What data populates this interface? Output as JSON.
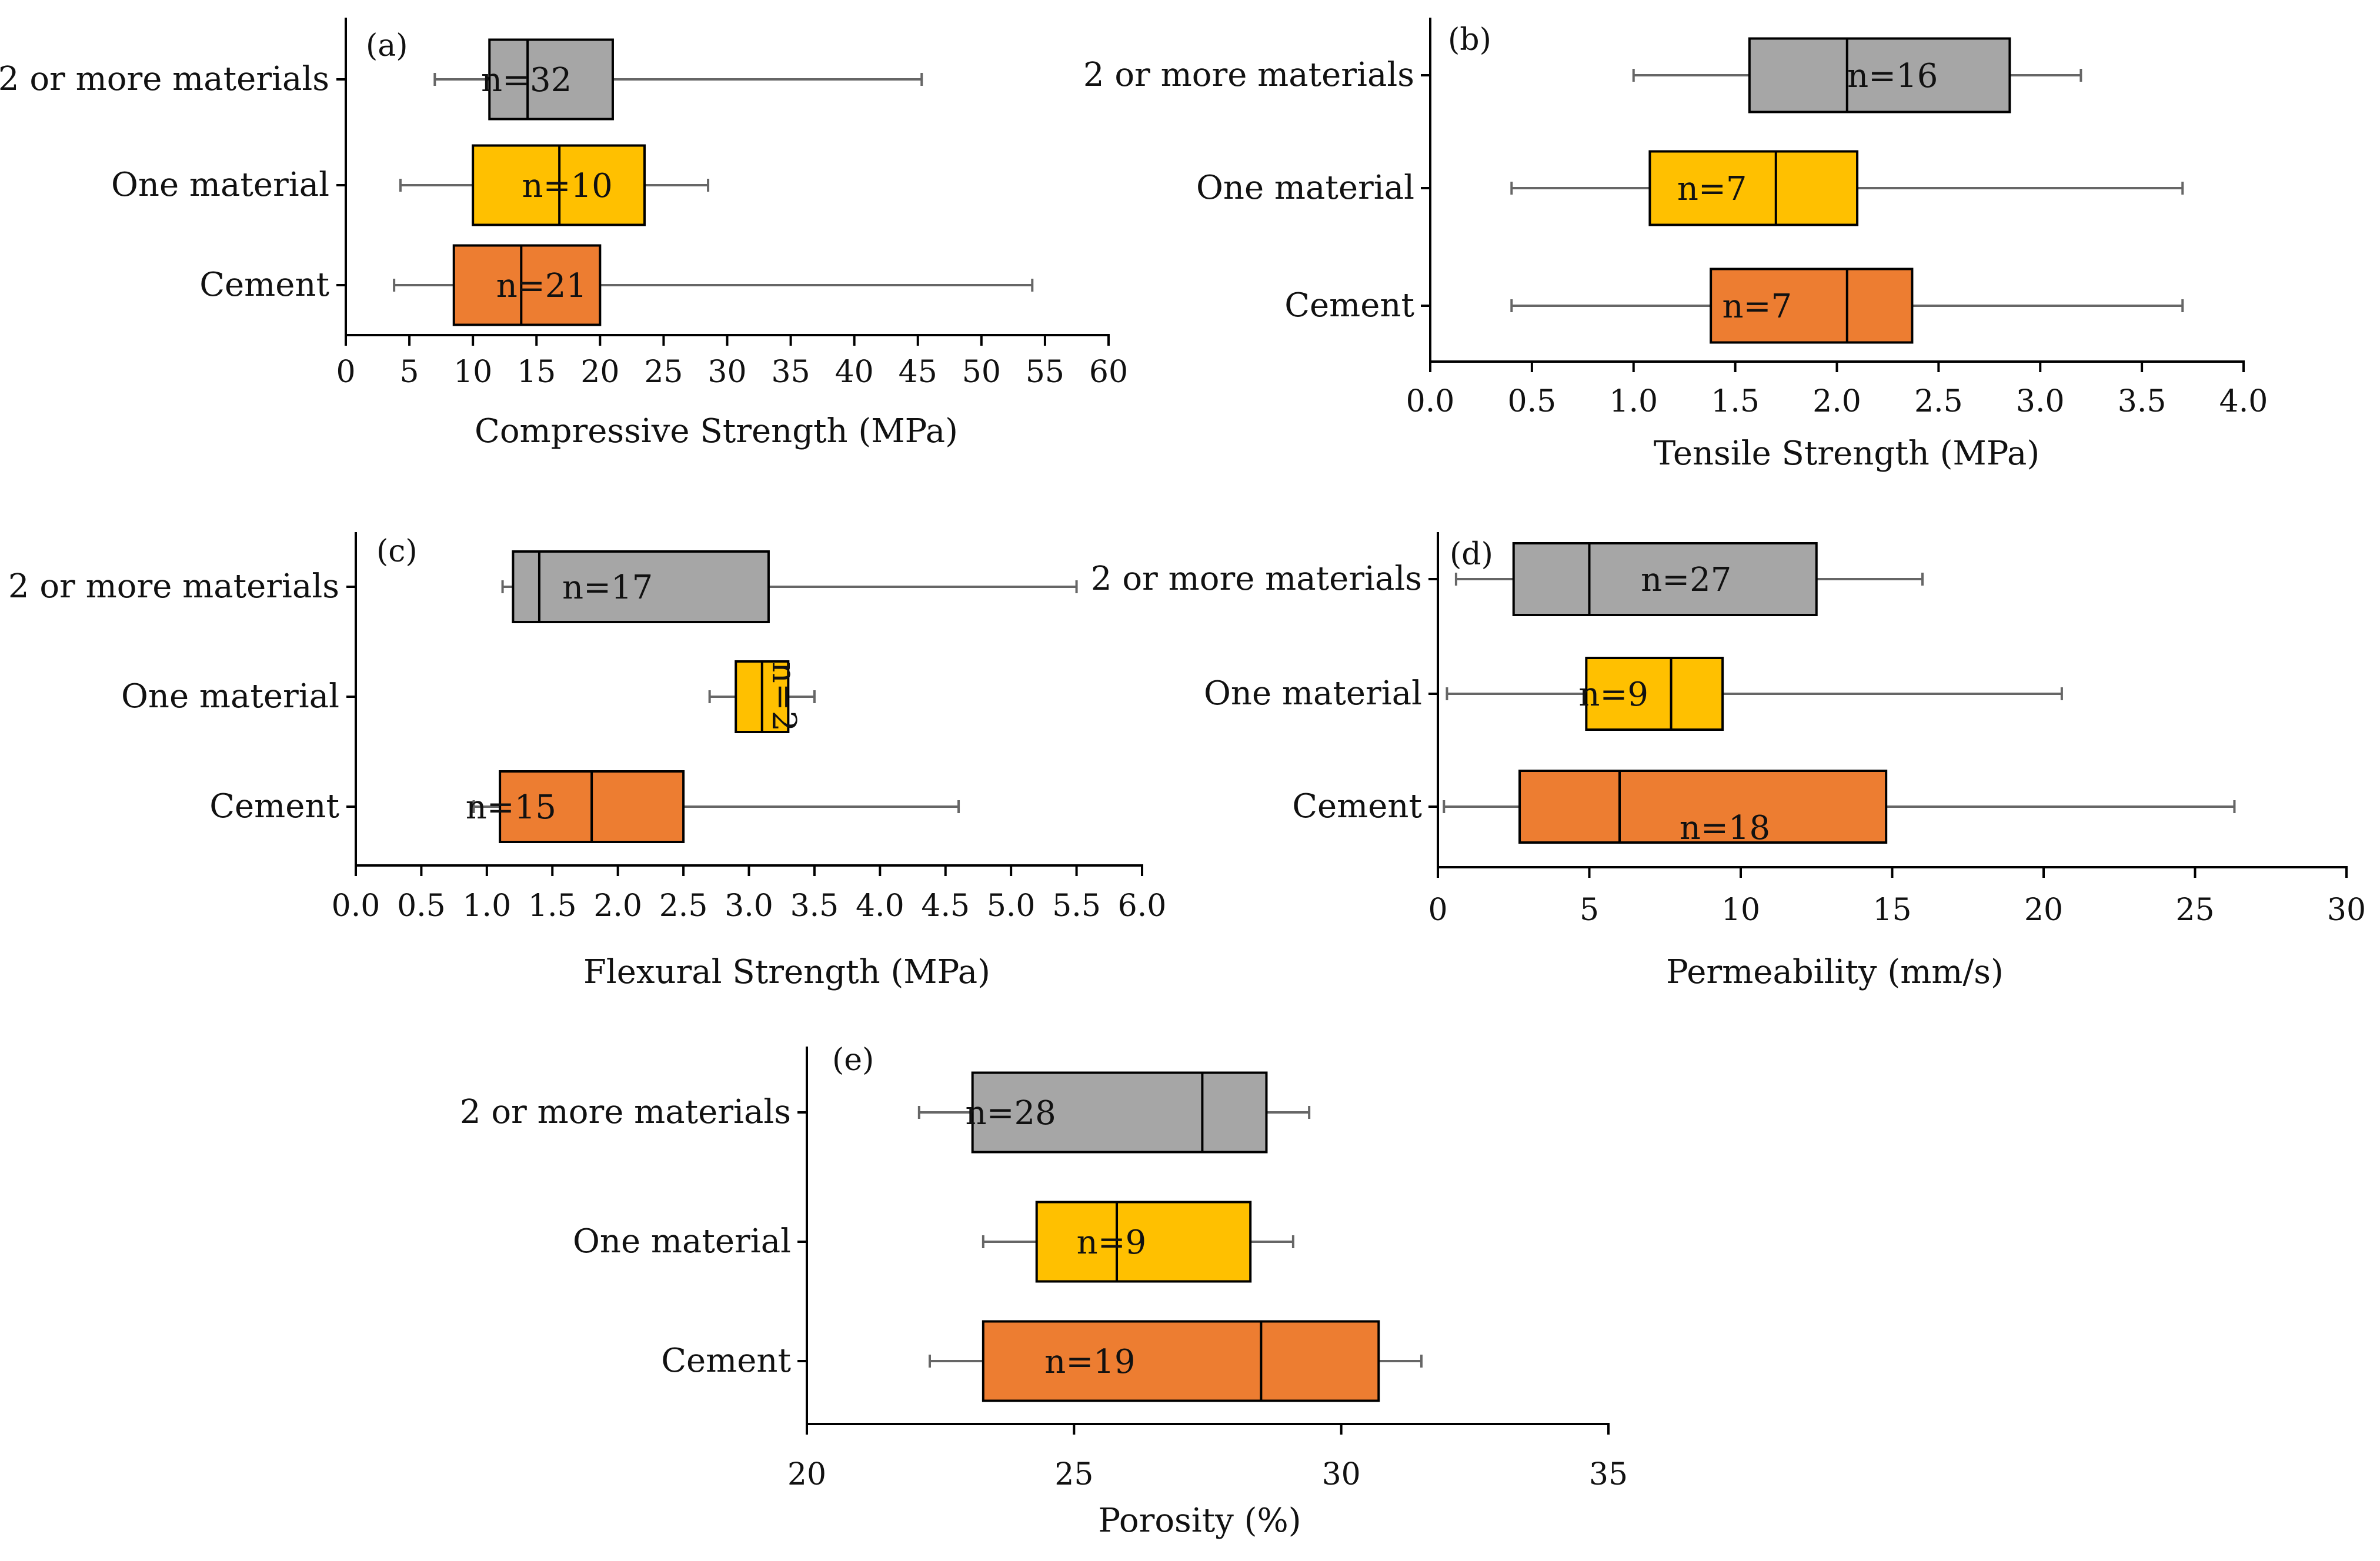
{
  "colors": {
    "two_or_more": "#a6a6a6",
    "one_material": "#ffc000",
    "cement": "#ed7d31",
    "axis": "#000000",
    "whisker": "#666666"
  },
  "categories": [
    "2 or more materials",
    "One material",
    "Cement"
  ],
  "chart_data": [
    {
      "type": "boxplot",
      "panel_label": "(a)",
      "xlabel": "Compressive Strength (MPa)",
      "xlim": [
        0,
        60
      ],
      "xticks": [
        "0",
        "5",
        "10",
        "15",
        "20",
        "25",
        "30",
        "35",
        "40",
        "45",
        "50",
        "55",
        "60"
      ],
      "boxes": [
        {
          "category": "2 or more materials",
          "min": 7,
          "q1": 11.3,
          "median": 14.3,
          "q3": 21,
          "max": 45.3,
          "n_label": "n=32"
        },
        {
          "category": "One material",
          "min": 4.3,
          "q1": 10,
          "median": 16.8,
          "q3": 23.5,
          "max": 28.5,
          "n_label": "n=10"
        },
        {
          "category": "Cement",
          "min": 3.8,
          "q1": 8.5,
          "median": 13.8,
          "q3": 20,
          "max": 54,
          "n_label": "n=21"
        }
      ]
    },
    {
      "type": "boxplot",
      "panel_label": "(b)",
      "xlabel": "Tensile Strength (MPa)",
      "xlim": [
        0,
        4
      ],
      "xticks": [
        "0.0",
        "0.5",
        "1.0",
        "1.5",
        "2.0",
        "2.5",
        "3.0",
        "3.5",
        "4.0"
      ],
      "boxes": [
        {
          "category": "2 or more materials",
          "min": 1.0,
          "q1": 1.57,
          "median": 2.05,
          "q3": 2.85,
          "max": 3.2,
          "n_label": "n=16"
        },
        {
          "category": "One material",
          "min": 0.4,
          "q1": 1.08,
          "median": 1.7,
          "q3": 2.1,
          "max": 3.7,
          "n_label": "n=7"
        },
        {
          "category": "Cement",
          "min": 0.4,
          "q1": 1.38,
          "median": 2.05,
          "q3": 2.37,
          "max": 3.7,
          "n_label": "n=7"
        }
      ]
    },
    {
      "type": "boxplot",
      "panel_label": "(c)",
      "xlabel": "Flexural Strength (MPa)",
      "xlim": [
        0,
        6
      ],
      "xticks": [
        "0.0",
        "0.5",
        "1.0",
        "1.5",
        "2.0",
        "2.5",
        "3.0",
        "3.5",
        "4.0",
        "4.5",
        "5.0",
        "5.5",
        "6.0"
      ],
      "boxes": [
        {
          "category": "2 or more materials",
          "min": 1.12,
          "q1": 1.2,
          "median": 1.4,
          "q3": 3.15,
          "max": 5.5,
          "n_label": "n=17"
        },
        {
          "category": "One material",
          "min": 2.7,
          "q1": 2.9,
          "median": 3.1,
          "q3": 3.3,
          "max": 3.5,
          "n_label": "n=2"
        },
        {
          "category": "Cement",
          "min": 0.9,
          "q1": 1.1,
          "median": 1.8,
          "q3": 2.5,
          "max": 4.6,
          "n_label": "n=15"
        }
      ]
    },
    {
      "type": "boxplot",
      "panel_label": "(d)",
      "xlabel": "Permeability (mm/s)",
      "xlim": [
        0,
        30
      ],
      "xticks": [
        "0",
        "5",
        "10",
        "15",
        "20",
        "25",
        "30"
      ],
      "boxes": [
        {
          "category": "2 or more materials",
          "min": 0.6,
          "q1": 2.5,
          "median": 5,
          "q3": 12.5,
          "max": 16,
          "n_label": "n=27"
        },
        {
          "category": "One material",
          "min": 0.3,
          "q1": 4.9,
          "median": 7.7,
          "q3": 9.4,
          "max": 20.6,
          "n_label": "n=9"
        },
        {
          "category": "Cement",
          "min": 0.2,
          "q1": 2.7,
          "median": 6,
          "q3": 14.8,
          "max": 26.3,
          "n_label": "n=18"
        }
      ]
    },
    {
      "type": "boxplot",
      "panel_label": "(e)",
      "xlabel": "Porosity (%)",
      "xlim": [
        20,
        35
      ],
      "xticks": [
        "20",
        "25",
        "30",
        "35"
      ],
      "boxes": [
        {
          "category": "2 or more materials",
          "min": 22.1,
          "q1": 23.1,
          "median": 27.4,
          "q3": 28.6,
          "max": 29.4,
          "n_label": "n=28"
        },
        {
          "category": "One material",
          "min": 23.3,
          "q1": 24.3,
          "median": 25.8,
          "q3": 28.3,
          "max": 29.1,
          "n_label": "n=9"
        },
        {
          "category": "Cement",
          "min": 22.3,
          "q1": 23.3,
          "median": 28.5,
          "q3": 30.7,
          "max": 31.5,
          "n_label": "n=19"
        }
      ]
    }
  ]
}
